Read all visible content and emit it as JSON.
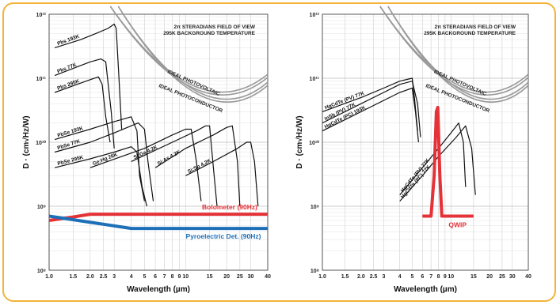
{
  "colors": {
    "frame": "#f2b43a",
    "bolometer": "#e53238",
    "pyro": "#1d6fb8",
    "qwip": "#e53238",
    "ideal": "#9a9a9a",
    "curve": "#111111"
  },
  "chart_data": [
    {
      "type": "line",
      "xlabel": "Wavelength (µm)",
      "ylabel": "D · (cm√Hz/W)",
      "xscale": "log",
      "yscale": "log",
      "xlim": [
        1.0,
        40
      ],
      "ylim": [
        100000000.0,
        1000000000000.0
      ],
      "x_ticks": [
        "1.0",
        "1.5",
        "2.0",
        "2.5",
        "3",
        "4",
        "5",
        "6",
        "7",
        "8",
        "9",
        "10",
        "15",
        "20",
        "25",
        "30",
        "40"
      ],
      "y_ticks": [
        "10¹²",
        "10¹¹",
        "10¹⁰",
        "10⁹",
        "10⁸"
      ],
      "notes": [
        "2π STERADIANS FIELD OF VIEW",
        "295K BACKGROUND TEMPERATURE"
      ],
      "ideal_labels": [
        "IDEAL PHOTOVOLTAIC",
        "IDEAL PHOTOCONDUCTOR"
      ],
      "series": [
        {
          "name": "Pbs 193K",
          "x": [
            1.1,
            1.7,
            2.2,
            2.7,
            3.0,
            3.1,
            3.25,
            3.4
          ],
          "y": [
            300000000000.0,
            400000000000.0,
            500000000000.0,
            600000000000.0,
            700000000000.0,
            600000000000.0,
            100000000000.0,
            16000000000.0
          ]
        },
        {
          "name": "Pbs 77K",
          "x": [
            1.1,
            1.6,
            2.0,
            2.4,
            2.6,
            2.85,
            3.0
          ],
          "y": [
            110000000000.0,
            150000000000.0,
            180000000000.0,
            200000000000.0,
            180000000000.0,
            30000000000.0,
            8000000000.0
          ]
        },
        {
          "name": "Pbs 295K",
          "x": [
            1.1,
            1.6,
            2.0,
            2.3,
            2.45,
            2.6,
            2.8
          ],
          "y": [
            60000000000.0,
            80000000000.0,
            95000000000.0,
            105000000000.0,
            80000000000.0,
            25000000000.0,
            10000000000.0
          ]
        },
        {
          "name": "PbSe 193K",
          "x": [
            1.1,
            2.0,
            3.0,
            4.0,
            4.4,
            4.6,
            5.0
          ],
          "y": [
            11000000000.0,
            16000000000.0,
            21000000000.0,
            25000000000.0,
            15000000000.0,
            3000000000.0,
            1200000000.0
          ]
        },
        {
          "name": "PbSe 77K",
          "x": [
            1.1,
            2.0,
            3.0,
            4.5,
            5.0,
            5.3,
            5.8
          ],
          "y": [
            7000000000.0,
            10000000000.0,
            14000000000.0,
            20000000000.0,
            16000000000.0,
            5000000000.0,
            1200000000.0
          ]
        },
        {
          "name": "PbSe 295K",
          "x": [
            1.1,
            2.0,
            3.0,
            4.0,
            4.4,
            4.8,
            5.2
          ],
          "y": [
            4000000000.0,
            5500000000.0,
            7000000000.0,
            8500000000.0,
            7000000000.0,
            2000000000.0,
            1000000000.0
          ]
        },
        {
          "name": "Ge:Hg 26K",
          "x": [
            2.0,
            5.0,
            8.0,
            10.0,
            11.0,
            12.0,
            13.0
          ],
          "y": [
            4000000000.0,
            8000000000.0,
            13000000000.0,
            16000000000.0,
            16000000000.0,
            5000000000.0,
            1200000000.0
          ]
        },
        {
          "name": "Si:Ga 4.2K",
          "x": [
            4.0,
            8.0,
            12.0,
            14.0,
            15.0,
            16.0,
            17.0
          ],
          "y": [
            5000000000.0,
            10000000000.0,
            15000000000.0,
            18000000000.0,
            18000000000.0,
            4000000000.0,
            1000000000.0
          ]
        },
        {
          "name": "Si:As 4.2K",
          "x": [
            6.0,
            10.0,
            16.0,
            20.0,
            22.0,
            24.0,
            25.0
          ],
          "y": [
            4000000000.0,
            8000000000.0,
            13000000000.0,
            17000000000.0,
            18000000000.0,
            5000000000.0,
            1000000000.0
          ]
        },
        {
          "name": "Si:Sb 4.2K",
          "x": [
            10.0,
            16.0,
            24.0,
            28.0,
            30.0,
            32.0,
            34.0
          ],
          "y": [
            3000000000.0,
            5000000000.0,
            8000000000.0,
            10000000000.0,
            10000000000.0,
            5000000000.0,
            1000000000.0
          ]
        },
        {
          "name": "Bolometer (90Hz)",
          "x": [
            1.0,
            1.5,
            2.0,
            3.0,
            40.0
          ],
          "y": [
            600000000.0,
            680000000.0,
            750000000.0,
            750000000.0,
            750000000.0
          ]
        },
        {
          "name": "Pyroelectric Det. (90Hz)",
          "x": [
            1.0,
            4.0,
            40.0
          ],
          "y": [
            700000000.0,
            450000000.0,
            450000000.0
          ]
        }
      ]
    },
    {
      "type": "line",
      "xlabel": "Wavelength (µm)",
      "ylabel": "D · (cm√Hz/W)",
      "xscale": "log",
      "yscale": "log",
      "xlim": [
        1.0,
        40
      ],
      "ylim": [
        100000000.0,
        1000000000000.0
      ],
      "x_ticks": [
        "1.0",
        "1.5",
        "2.0",
        "2.5",
        "3",
        "4",
        "5",
        "6",
        "7",
        "8",
        "9",
        "10",
        "15",
        "20",
        "25",
        "30",
        "40"
      ],
      "y_ticks": [
        "10¹²",
        "10¹¹",
        "10¹⁰",
        "10⁹",
        "10⁸"
      ],
      "notes": [
        "2π STERADIANS FIELD OF VIEW",
        "295K BACKGROUND TEMPERATURE"
      ],
      "ideal_labels": [
        "IDEAL PHOTOVOLTAIC",
        "IDEAL PHOTOCONDUCTOR"
      ],
      "series": [
        {
          "name": "HgCdTe (PV) 77K",
          "x": [
            1.0,
            2.0,
            3.0,
            4.0,
            5.0,
            5.2,
            5.5
          ],
          "y": [
            30000000000.0,
            50000000000.0,
            70000000000.0,
            90000000000.0,
            100000000000.0,
            50000000000.0,
            15000000000.0
          ]
        },
        {
          "name": "InSb (PV) 77K",
          "x": [
            1.0,
            2.0,
            3.0,
            4.0,
            5.0,
            5.5,
            5.8
          ],
          "y": [
            20000000000.0,
            40000000000.0,
            60000000000.0,
            80000000000.0,
            90000000000.0,
            40000000000.0,
            12000000000.0
          ]
        },
        {
          "name": "HgCdTe (PC) 193K",
          "x": [
            1.0,
            2.0,
            3.0,
            4.0,
            5.0,
            5.3,
            5.6
          ],
          "y": [
            15000000000.0,
            30000000000.0,
            45000000000.0,
            60000000000.0,
            70000000000.0,
            30000000000.0,
            10000000000.0
          ]
        },
        {
          "name": "HgCdTe (PV) 77K",
          "x": [
            4.0,
            6.0,
            8.0,
            10.0,
            11.5,
            12.5,
            13.0
          ],
          "y": [
            1500000000.0,
            4000000000.0,
            8000000000.0,
            14000000000.0,
            20000000000.0,
            10000000000.0,
            2000000000.0
          ]
        },
        {
          "name": "HgCdTe (PC) 77K",
          "x": [
            4.0,
            6.0,
            8.0,
            11.0,
            13.0,
            14.5,
            15.5
          ],
          "y": [
            1200000000.0,
            3000000000.0,
            6000000000.0,
            12000000000.0,
            18000000000.0,
            8000000000.0,
            1500000000.0
          ]
        },
        {
          "name": "QWIP",
          "x": [
            6.0,
            7.0,
            7.4,
            7.7,
            7.9,
            8.2,
            8.5,
            10.0,
            15.0
          ],
          "y": [
            700000000.0,
            700000000.0,
            3000000000.0,
            30000000000.0,
            35000000000.0,
            3000000000.0,
            700000000.0,
            700000000.0,
            700000000.0
          ]
        }
      ]
    }
  ]
}
